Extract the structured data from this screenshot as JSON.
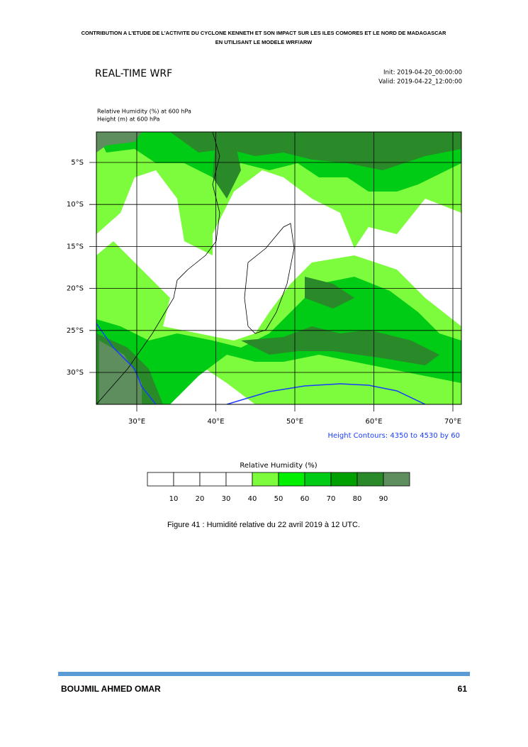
{
  "header": {
    "line1": "CONTRIBUTION A L’ETUDE DE L’ACTIVITE DU CYCLONE KENNETH ET SON IMPACT SUR LES ILES COMORES ET LE NORD DE MADAGASCAR",
    "line2": "EN UTILISANT LE MODELE WRF/ARW"
  },
  "figure": {
    "title": "REAL-TIME WRF",
    "init": "Init: 2019-04-20_00:00:00",
    "valid": "Valid: 2019-04-22_12:00:00",
    "field1": "Relative Humidity  (%)    at   600 hPa",
    "field2": "Height  (m)    at   600 hPa",
    "lat_labels": [
      "5°S",
      "10°S",
      "15°S",
      "20°S",
      "25°S",
      "30°S"
    ],
    "lon_labels": [
      "30°E",
      "40°E",
      "50°E",
      "60°E",
      "70°E"
    ],
    "contour_note": "Height Contours: 4350 to 4530 by 60",
    "colorbar": {
      "title": "Relative Humidity  (%)",
      "labels": [
        "10",
        "20",
        "30",
        "40",
        "50",
        "60",
        "70",
        "80",
        "90"
      ],
      "colors": [
        "#ffffff",
        "#ffffff",
        "#ffffff",
        "#ffffff",
        "#7cfc3c",
        "#00f000",
        "#00cc16",
        "#00a000",
        "#2a8a2a",
        "#5e8e5e"
      ]
    }
  },
  "caption": "Figure 41 : Humidité relative du 22 avril 2019 à 12 UTC.",
  "footer": {
    "author": "BOUJMIL AHMED OMAR",
    "page": "61"
  }
}
